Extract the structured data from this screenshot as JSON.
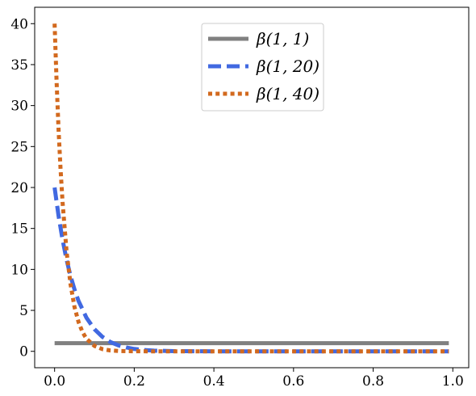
{
  "chart_data": {
    "type": "line",
    "title": "",
    "xlabel": "",
    "ylabel": "",
    "xlim": [
      -0.05,
      1.04
    ],
    "ylim": [
      -2,
      42
    ],
    "xticks": [
      0.0,
      0.2,
      0.4,
      0.6,
      0.8,
      1.0
    ],
    "xtick_labels": [
      "0.0",
      "0.2",
      "0.4",
      "0.6",
      "0.8",
      "1.0"
    ],
    "yticks": [
      0,
      5,
      10,
      15,
      20,
      25,
      30,
      35,
      40
    ],
    "ytick_labels": [
      "0",
      "5",
      "10",
      "15",
      "20",
      "25",
      "30",
      "35",
      "40"
    ],
    "grid": false,
    "legend_position": "top-center",
    "series": [
      {
        "name": "β(1, 1)",
        "color": "#808080",
        "style": "solid",
        "x": [
          0.0,
          0.99
        ],
        "y": [
          1,
          1
        ]
      },
      {
        "name": "β(1, 20)",
        "color": "#4169E1",
        "style": "dashed",
        "x": [
          0.0,
          0.01,
          0.02,
          0.03,
          0.04,
          0.05,
          0.06,
          0.08,
          0.1,
          0.12,
          0.14,
          0.16,
          0.18,
          0.2,
          0.22,
          0.25,
          0.3,
          0.4,
          0.5,
          0.6,
          0.7,
          0.8,
          0.9,
          0.99
        ],
        "y": [
          20,
          16.52,
          13.62,
          11.2,
          9.19,
          7.55,
          6.16,
          4.1,
          2.7,
          1.77,
          1.14,
          0.73,
          0.47,
          0.29,
          0.18,
          0.085,
          0.023,
          0.0007,
          0,
          0,
          0,
          0,
          0,
          0
        ]
      },
      {
        "name": "β(1, 40)",
        "color": "#D2691E",
        "style": "dotted",
        "x": [
          0.0,
          0.005,
          0.01,
          0.015,
          0.02,
          0.03,
          0.04,
          0.05,
          0.06,
          0.07,
          0.08,
          0.1,
          0.12,
          0.14,
          0.16,
          0.2,
          0.3,
          0.4,
          0.5,
          0.6,
          0.7,
          0.8,
          0.9,
          0.99
        ],
        "y": [
          40,
          32.9,
          27.0,
          22.2,
          18.2,
          12.2,
          8.2,
          5.4,
          3.6,
          2.35,
          1.54,
          0.66,
          0.27,
          0.11,
          0.045,
          0.006,
          0,
          0,
          0,
          0,
          0,
          0,
          0,
          0
        ]
      }
    ]
  }
}
